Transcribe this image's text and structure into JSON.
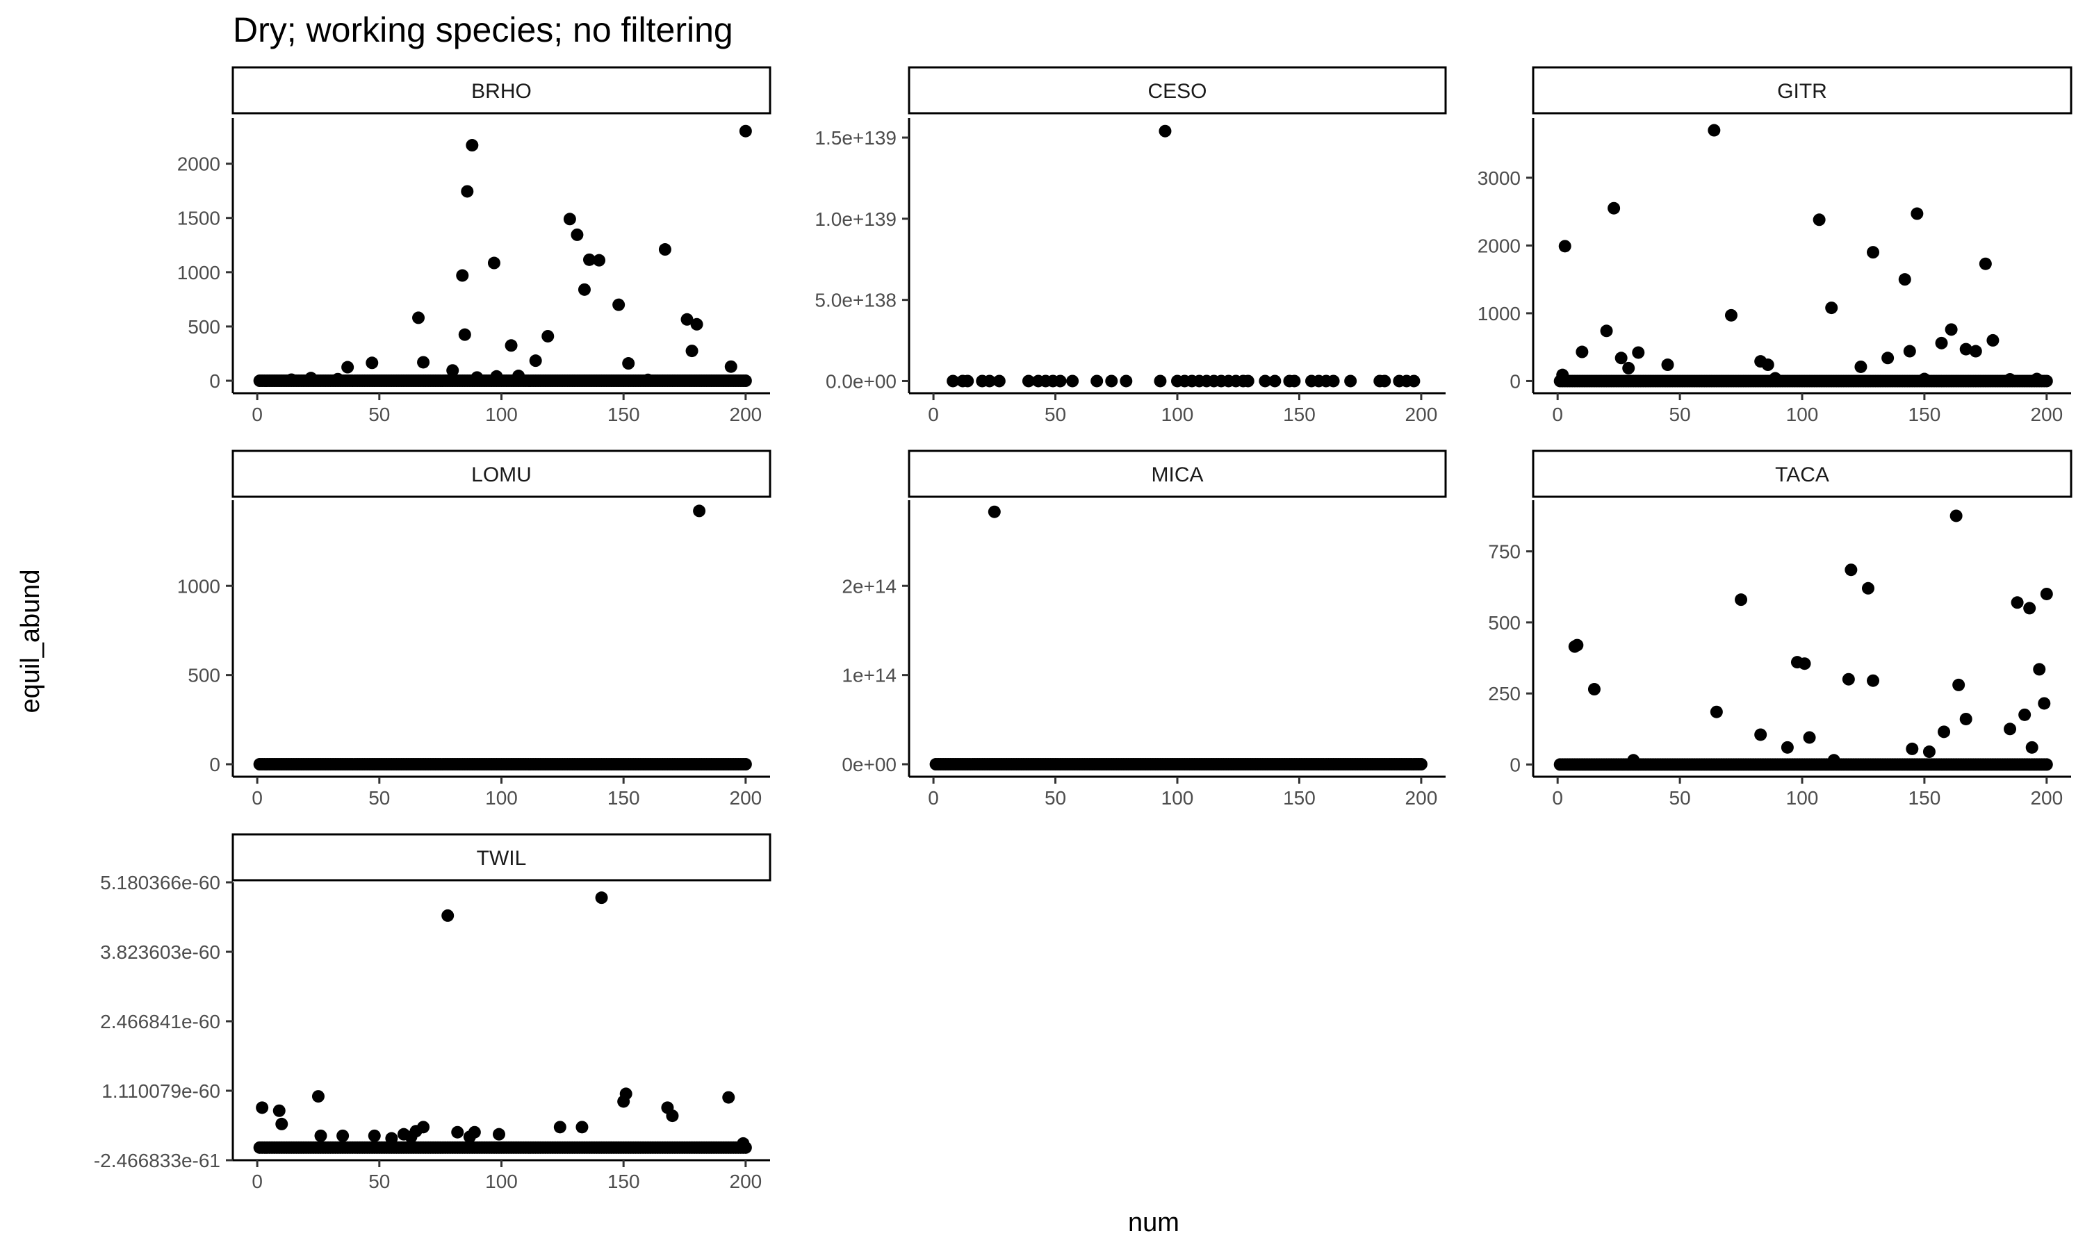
{
  "chart_data": {
    "type": "scatter",
    "title": "Dry; working species; no filtering",
    "xlabel": "num",
    "ylabel": "equil_abund",
    "grid": false,
    "point_color": "#000000",
    "panels": [
      {
        "name": "BRHO",
        "xlim": [
          -10,
          210
        ],
        "xticks": [
          0,
          50,
          100,
          150,
          200
        ],
        "xtick_labels": [
          "0",
          "50",
          "100",
          "150",
          "200"
        ],
        "ylim": [
          -115,
          2420
        ],
        "yticks": [
          0,
          500,
          1000,
          1500,
          2000
        ],
        "ytick_labels": [
          "0",
          "500",
          "1000",
          "1500",
          "2000"
        ],
        "baseline": {
          "x_start": 1,
          "x_end": 200,
          "step": 1,
          "y": 0
        },
        "points": [
          [
            37,
            125
          ],
          [
            47,
            165
          ],
          [
            66,
            580
          ],
          [
            68,
            170
          ],
          [
            80,
            95
          ],
          [
            84,
            970
          ],
          [
            85,
            425
          ],
          [
            86,
            1745
          ],
          [
            88,
            2170
          ],
          [
            97,
            1085
          ],
          [
            104,
            325
          ],
          [
            107,
            45
          ],
          [
            114,
            185
          ],
          [
            119,
            410
          ],
          [
            128,
            1490
          ],
          [
            131,
            1345
          ],
          [
            134,
            840
          ],
          [
            136,
            1115
          ],
          [
            140,
            1110
          ],
          [
            148,
            700
          ],
          [
            152,
            160
          ],
          [
            167,
            1210
          ],
          [
            176,
            565
          ],
          [
            178,
            275
          ],
          [
            180,
            520
          ],
          [
            194,
            130
          ],
          [
            200,
            2300
          ],
          [
            22,
            25
          ],
          [
            14,
            10
          ],
          [
            33,
            15
          ],
          [
            90,
            30
          ],
          [
            98,
            40
          ],
          [
            160,
            8
          ]
        ]
      },
      {
        "name": "CESO",
        "xlim": [
          -10,
          210
        ],
        "xticks": [
          0,
          50,
          100,
          150,
          200
        ],
        "xtick_labels": [
          "0",
          "50",
          "100",
          "150",
          "200"
        ],
        "ylim": [
          -7.5e+137,
          1.62e+139
        ],
        "yticks": [
          0,
          5e+138,
          1e+139,
          1.5e+139
        ],
        "ytick_labels": [
          "0.0e+00",
          "5.0e+138",
          "1.0e+139",
          "1.5e+139"
        ],
        "points": [
          [
            8,
            0
          ],
          [
            12,
            0
          ],
          [
            14,
            0
          ],
          [
            20,
            0
          ],
          [
            23,
            0
          ],
          [
            27,
            0
          ],
          [
            39,
            0
          ],
          [
            43,
            0
          ],
          [
            46,
            0
          ],
          [
            49,
            0
          ],
          [
            52,
            0
          ],
          [
            57,
            0
          ],
          [
            67,
            0
          ],
          [
            73,
            0
          ],
          [
            79,
            0
          ],
          [
            93,
            0
          ],
          [
            100,
            0
          ],
          [
            103,
            0
          ],
          [
            106,
            0
          ],
          [
            109,
            0
          ],
          [
            112,
            0
          ],
          [
            115,
            0
          ],
          [
            118,
            0
          ],
          [
            121,
            0
          ],
          [
            124,
            0
          ],
          [
            127,
            0
          ],
          [
            129,
            0
          ],
          [
            136,
            0
          ],
          [
            140,
            0
          ],
          [
            146,
            0
          ],
          [
            148,
            0
          ],
          [
            155,
            0
          ],
          [
            158,
            0
          ],
          [
            161,
            0
          ],
          [
            164,
            0
          ],
          [
            171,
            0
          ],
          [
            183,
            0
          ],
          [
            185,
            0
          ],
          [
            191,
            0
          ],
          [
            194,
            0
          ],
          [
            197,
            0
          ],
          [
            95,
            1.54e+139
          ]
        ]
      },
      {
        "name": "GITR",
        "xlim": [
          -10,
          210
        ],
        "xticks": [
          0,
          50,
          100,
          150,
          200
        ],
        "xtick_labels": [
          "0",
          "50",
          "100",
          "150",
          "200"
        ],
        "ylim": [
          -180,
          3880
        ],
        "yticks": [
          0,
          1000,
          2000,
          3000
        ],
        "ytick_labels": [
          "0",
          "1000",
          "2000",
          "3000"
        ],
        "baseline": {
          "x_start": 1,
          "x_end": 200,
          "step": 1,
          "y": 0
        },
        "points": [
          [
            2,
            90
          ],
          [
            3,
            1990
          ],
          [
            10,
            430
          ],
          [
            20,
            740
          ],
          [
            23,
            2550
          ],
          [
            26,
            340
          ],
          [
            29,
            190
          ],
          [
            33,
            420
          ],
          [
            45,
            240
          ],
          [
            64,
            3700
          ],
          [
            71,
            970
          ],
          [
            83,
            290
          ],
          [
            86,
            240
          ],
          [
            107,
            2380
          ],
          [
            112,
            1080
          ],
          [
            124,
            210
          ],
          [
            129,
            1900
          ],
          [
            135,
            340
          ],
          [
            142,
            1500
          ],
          [
            144,
            440
          ],
          [
            147,
            2470
          ],
          [
            157,
            560
          ],
          [
            161,
            760
          ],
          [
            167,
            470
          ],
          [
            171,
            440
          ],
          [
            175,
            1730
          ],
          [
            178,
            600
          ],
          [
            89,
            40
          ],
          [
            150,
            30
          ],
          [
            185,
            25
          ],
          [
            196,
            30
          ]
        ]
      },
      {
        "name": "LOMU",
        "xlim": [
          -10,
          210
        ],
        "xticks": [
          0,
          50,
          100,
          150,
          200
        ],
        "xtick_labels": [
          "0",
          "50",
          "100",
          "150",
          "200"
        ],
        "ylim": [
          -70,
          1480
        ],
        "yticks": [
          0,
          500,
          1000
        ],
        "ytick_labels": [
          "0",
          "500",
          "1000"
        ],
        "baseline": {
          "x_start": 1,
          "x_end": 200,
          "step": 1,
          "y": 0
        },
        "points": [
          [
            181,
            1420
          ]
        ]
      },
      {
        "name": "MICA",
        "xlim": [
          -10,
          210
        ],
        "xticks": [
          0,
          50,
          100,
          150,
          200
        ],
        "xtick_labels": [
          "0",
          "50",
          "100",
          "150",
          "200"
        ],
        "ylim": [
          -14000000000000.0,
          296000000000000.0
        ],
        "yticks": [
          0,
          100000000000000.0,
          200000000000000.0
        ],
        "ytick_labels": [
          "0e+00",
          "1e+14",
          "2e+14"
        ],
        "baseline": {
          "x_start": 1,
          "x_end": 200,
          "step": 1,
          "y": 0
        },
        "points": [
          [
            25,
            283000000000000.0
          ]
        ]
      },
      {
        "name": "TACA",
        "xlim": [
          -10,
          210
        ],
        "xticks": [
          0,
          50,
          100,
          150,
          200
        ],
        "xtick_labels": [
          "0",
          "50",
          "100",
          "150",
          "200"
        ],
        "ylim": [
          -43,
          930
        ],
        "yticks": [
          0,
          250,
          500,
          750
        ],
        "ytick_labels": [
          "0",
          "250",
          "500",
          "750"
        ],
        "baseline": {
          "x_start": 1,
          "x_end": 200,
          "step": 1,
          "y": 0
        },
        "points": [
          [
            7,
            415
          ],
          [
            8,
            420
          ],
          [
            15,
            265
          ],
          [
            31,
            15
          ],
          [
            65,
            185
          ],
          [
            75,
            580
          ],
          [
            83,
            105
          ],
          [
            94,
            60
          ],
          [
            98,
            360
          ],
          [
            101,
            355
          ],
          [
            103,
            95
          ],
          [
            113,
            15
          ],
          [
            119,
            300
          ],
          [
            120,
            685
          ],
          [
            127,
            620
          ],
          [
            129,
            295
          ],
          [
            145,
            55
          ],
          [
            152,
            45
          ],
          [
            158,
            115
          ],
          [
            163,
            875
          ],
          [
            164,
            280
          ],
          [
            167,
            160
          ],
          [
            185,
            125
          ],
          [
            188,
            570
          ],
          [
            191,
            175
          ],
          [
            193,
            550
          ],
          [
            194,
            60
          ],
          [
            197,
            335
          ],
          [
            199,
            215
          ],
          [
            200,
            600
          ]
        ]
      },
      {
        "name": "TWIL",
        "xlim": [
          -10,
          210
        ],
        "xticks": [
          0,
          50,
          100,
          150,
          200
        ],
        "xtick_labels": [
          "0",
          "50",
          "100",
          "150",
          "200"
        ],
        "ylim": [
          -2.466833e-61,
          5.180366e-60
        ],
        "yticks": [
          -2.466833e-61,
          1.110079e-60,
          2.466841e-60,
          3.823603e-60,
          5.180366e-60
        ],
        "ytick_labels": [
          "-2.466833e-61",
          "1.110079e-60",
          "2.466841e-60",
          "3.823603e-60",
          "5.180366e-60"
        ],
        "baseline": {
          "x_start": 1,
          "x_end": 200,
          "step": 1,
          "y": 0
        },
        "points": [
          [
            2,
            7.8e-61
          ],
          [
            9,
            7.2e-61
          ],
          [
            10,
            4.6e-61
          ],
          [
            25,
            1e-60
          ],
          [
            26,
            2.3e-61
          ],
          [
            35,
            2.3e-61
          ],
          [
            48,
            2.3e-61
          ],
          [
            55,
            1.8e-61
          ],
          [
            60,
            2.6e-61
          ],
          [
            63,
            2.1e-61
          ],
          [
            65,
            3.2e-61
          ],
          [
            68,
            4e-61
          ],
          [
            78,
            4.53e-60
          ],
          [
            82,
            3e-61
          ],
          [
            87,
            2.1e-61
          ],
          [
            89,
            3e-61
          ],
          [
            99,
            2.6e-61
          ],
          [
            124,
            4e-61
          ],
          [
            133,
            4e-61
          ],
          [
            141,
            4.88e-60
          ],
          [
            150,
            9e-61
          ],
          [
            151,
            1.05e-60
          ],
          [
            168,
            7.8e-61
          ],
          [
            170,
            6.2e-61
          ],
          [
            193,
            9.8e-61
          ],
          [
            199,
            8e-62
          ]
        ]
      }
    ]
  }
}
